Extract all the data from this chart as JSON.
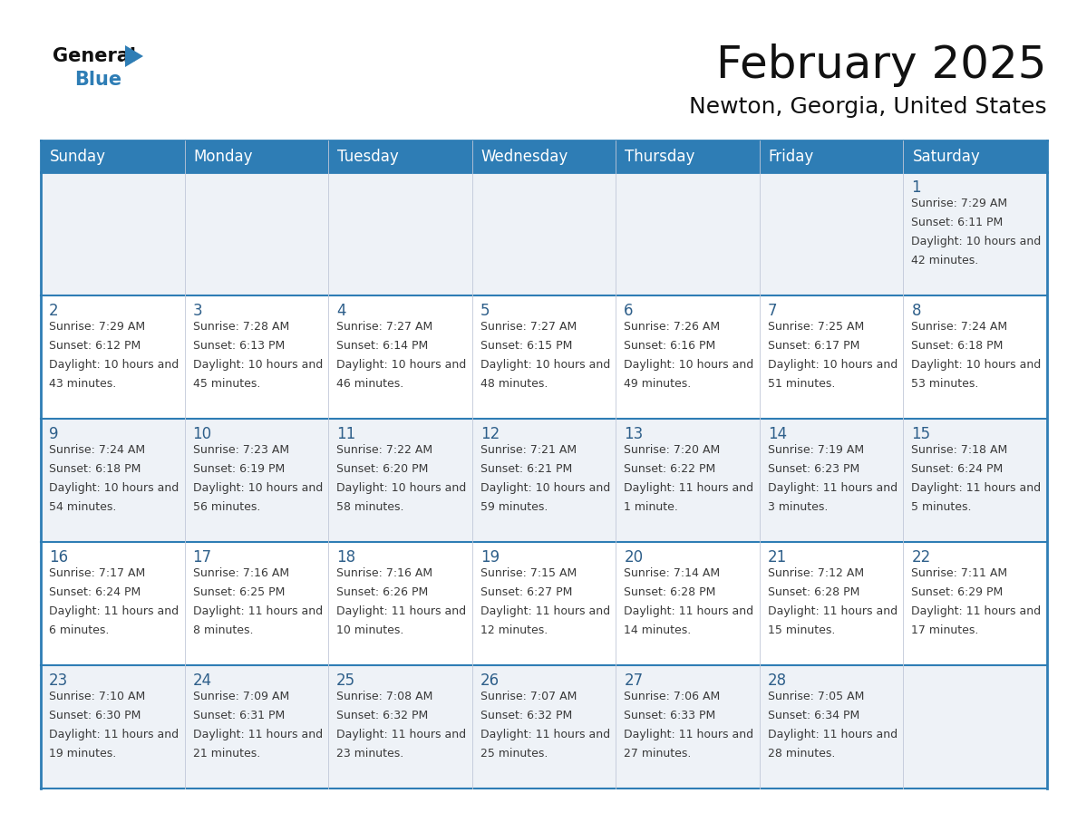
{
  "title": "February 2025",
  "subtitle": "Newton, Georgia, United States",
  "days_of_week": [
    "Sunday",
    "Monday",
    "Tuesday",
    "Wednesday",
    "Thursday",
    "Friday",
    "Saturday"
  ],
  "header_bg": "#2e7db5",
  "header_fg": "#ffffff",
  "cell_bg_even": "#eef2f7",
  "cell_bg_odd": "#ffffff",
  "row_line_color": "#2e7db5",
  "vert_line_color": "#c0c8d8",
  "day_number_color": "#2e5f8a",
  "text_color": "#3a3a3a",
  "bg_color": "#ffffff",
  "title_fontsize": 36,
  "subtitle_fontsize": 18,
  "header_fontsize": 12,
  "day_num_fontsize": 12,
  "cell_text_fontsize": 9,
  "calendar_data": [
    {
      "day": 1,
      "col": 6,
      "row": 0,
      "sunrise": "7:29 AM",
      "sunset": "6:11 PM",
      "daylight": "10 hours and 42 minutes."
    },
    {
      "day": 2,
      "col": 0,
      "row": 1,
      "sunrise": "7:29 AM",
      "sunset": "6:12 PM",
      "daylight": "10 hours and 43 minutes."
    },
    {
      "day": 3,
      "col": 1,
      "row": 1,
      "sunrise": "7:28 AM",
      "sunset": "6:13 PM",
      "daylight": "10 hours and 45 minutes."
    },
    {
      "day": 4,
      "col": 2,
      "row": 1,
      "sunrise": "7:27 AM",
      "sunset": "6:14 PM",
      "daylight": "10 hours and 46 minutes."
    },
    {
      "day": 5,
      "col": 3,
      "row": 1,
      "sunrise": "7:27 AM",
      "sunset": "6:15 PM",
      "daylight": "10 hours and 48 minutes."
    },
    {
      "day": 6,
      "col": 4,
      "row": 1,
      "sunrise": "7:26 AM",
      "sunset": "6:16 PM",
      "daylight": "10 hours and 49 minutes."
    },
    {
      "day": 7,
      "col": 5,
      "row": 1,
      "sunrise": "7:25 AM",
      "sunset": "6:17 PM",
      "daylight": "10 hours and 51 minutes."
    },
    {
      "day": 8,
      "col": 6,
      "row": 1,
      "sunrise": "7:24 AM",
      "sunset": "6:18 PM",
      "daylight": "10 hours and 53 minutes."
    },
    {
      "day": 9,
      "col": 0,
      "row": 2,
      "sunrise": "7:24 AM",
      "sunset": "6:18 PM",
      "daylight": "10 hours and 54 minutes."
    },
    {
      "day": 10,
      "col": 1,
      "row": 2,
      "sunrise": "7:23 AM",
      "sunset": "6:19 PM",
      "daylight": "10 hours and 56 minutes."
    },
    {
      "day": 11,
      "col": 2,
      "row": 2,
      "sunrise": "7:22 AM",
      "sunset": "6:20 PM",
      "daylight": "10 hours and 58 minutes."
    },
    {
      "day": 12,
      "col": 3,
      "row": 2,
      "sunrise": "7:21 AM",
      "sunset": "6:21 PM",
      "daylight": "10 hours and 59 minutes."
    },
    {
      "day": 13,
      "col": 4,
      "row": 2,
      "sunrise": "7:20 AM",
      "sunset": "6:22 PM",
      "daylight": "11 hours and 1 minute."
    },
    {
      "day": 14,
      "col": 5,
      "row": 2,
      "sunrise": "7:19 AM",
      "sunset": "6:23 PM",
      "daylight": "11 hours and 3 minutes."
    },
    {
      "day": 15,
      "col": 6,
      "row": 2,
      "sunrise": "7:18 AM",
      "sunset": "6:24 PM",
      "daylight": "11 hours and 5 minutes."
    },
    {
      "day": 16,
      "col": 0,
      "row": 3,
      "sunrise": "7:17 AM",
      "sunset": "6:24 PM",
      "daylight": "11 hours and 6 minutes."
    },
    {
      "day": 17,
      "col": 1,
      "row": 3,
      "sunrise": "7:16 AM",
      "sunset": "6:25 PM",
      "daylight": "11 hours and 8 minutes."
    },
    {
      "day": 18,
      "col": 2,
      "row": 3,
      "sunrise": "7:16 AM",
      "sunset": "6:26 PM",
      "daylight": "11 hours and 10 minutes."
    },
    {
      "day": 19,
      "col": 3,
      "row": 3,
      "sunrise": "7:15 AM",
      "sunset": "6:27 PM",
      "daylight": "11 hours and 12 minutes."
    },
    {
      "day": 20,
      "col": 4,
      "row": 3,
      "sunrise": "7:14 AM",
      "sunset": "6:28 PM",
      "daylight": "11 hours and 14 minutes."
    },
    {
      "day": 21,
      "col": 5,
      "row": 3,
      "sunrise": "7:12 AM",
      "sunset": "6:28 PM",
      "daylight": "11 hours and 15 minutes."
    },
    {
      "day": 22,
      "col": 6,
      "row": 3,
      "sunrise": "7:11 AM",
      "sunset": "6:29 PM",
      "daylight": "11 hours and 17 minutes."
    },
    {
      "day": 23,
      "col": 0,
      "row": 4,
      "sunrise": "7:10 AM",
      "sunset": "6:30 PM",
      "daylight": "11 hours and 19 minutes."
    },
    {
      "day": 24,
      "col": 1,
      "row": 4,
      "sunrise": "7:09 AM",
      "sunset": "6:31 PM",
      "daylight": "11 hours and 21 minutes."
    },
    {
      "day": 25,
      "col": 2,
      "row": 4,
      "sunrise": "7:08 AM",
      "sunset": "6:32 PM",
      "daylight": "11 hours and 23 minutes."
    },
    {
      "day": 26,
      "col": 3,
      "row": 4,
      "sunrise": "7:07 AM",
      "sunset": "6:32 PM",
      "daylight": "11 hours and 25 minutes."
    },
    {
      "day": 27,
      "col": 4,
      "row": 4,
      "sunrise": "7:06 AM",
      "sunset": "6:33 PM",
      "daylight": "11 hours and 27 minutes."
    },
    {
      "day": 28,
      "col": 5,
      "row": 4,
      "sunrise": "7:05 AM",
      "sunset": "6:34 PM",
      "daylight": "11 hours and 28 minutes."
    }
  ]
}
